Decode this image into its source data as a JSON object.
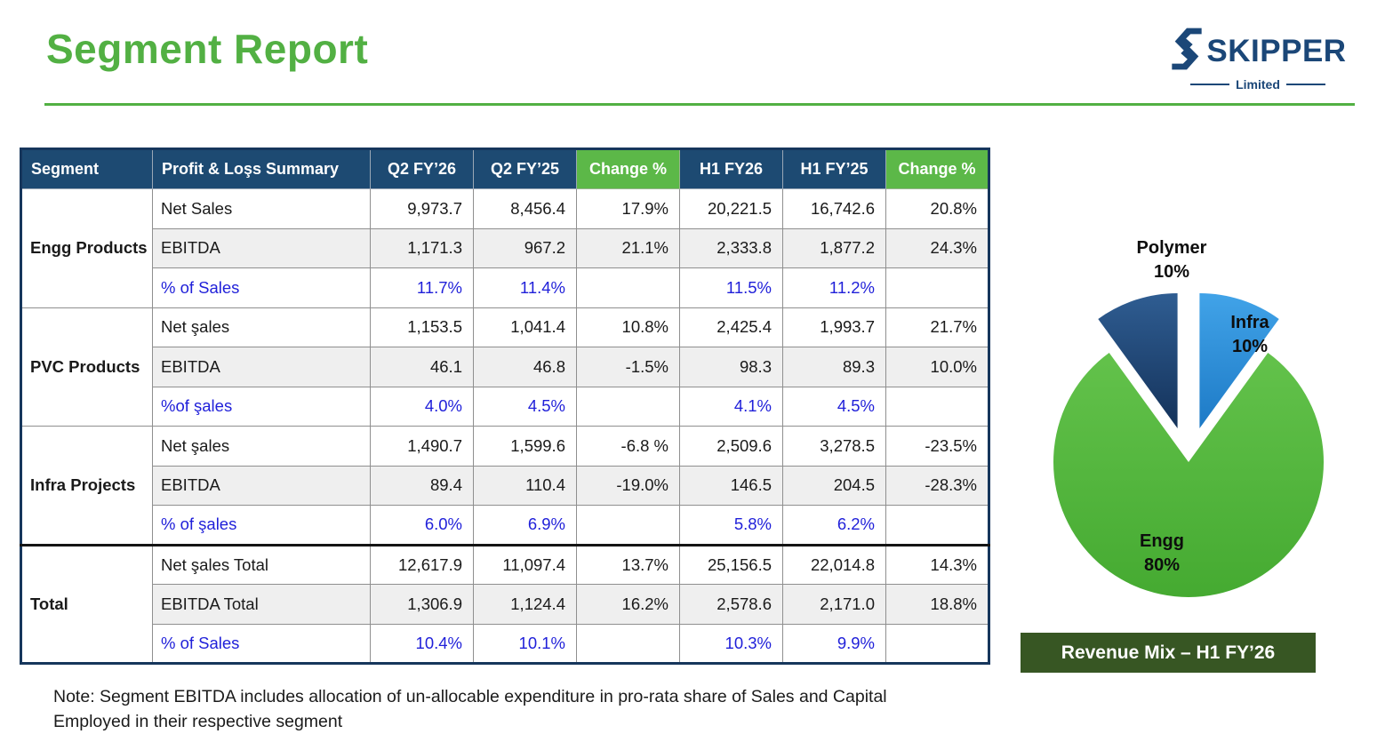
{
  "header": {
    "title": "Segment Report"
  },
  "logo": {
    "word": "SKIPPER",
    "subtitle": "Limited"
  },
  "table": {
    "columns": [
      "Segment",
      "Profit & Loşs Summary",
      "Q2 FY’26",
      "Q2 FY’25",
      "Change %",
      "H1 FY26",
      "H1 FY’25",
      "Change %"
    ],
    "sections": [
      {
        "segment": "Engg Products",
        "rows": [
          {
            "label": "Net Sales",
            "shaded": false,
            "percent": false,
            "values": [
              "9,973.7",
              "8,456.4",
              "17.9%",
              "20,221.5",
              "16,742.6",
              "20.8%"
            ]
          },
          {
            "label": "EBITDA",
            "shaded": true,
            "percent": false,
            "values": [
              "1,171.3",
              "967.2",
              "21.1%",
              "2,333.8",
              "1,877.2",
              "24.3%"
            ]
          },
          {
            "label": "% of Sales",
            "shaded": false,
            "percent": true,
            "values": [
              "11.7%",
              "11.4%",
              "",
              "11.5%",
              "11.2%",
              ""
            ]
          }
        ]
      },
      {
        "segment": "PVC Products",
        "rows": [
          {
            "label": "Net şales",
            "shaded": false,
            "percent": false,
            "values": [
              "1,153.5",
              "1,041.4",
              "10.8%",
              "2,425.4",
              "1,993.7",
              "21.7%"
            ]
          },
          {
            "label": "EBITDA",
            "shaded": true,
            "percent": false,
            "values": [
              "46.1",
              "46.8",
              "-1.5%",
              "98.3",
              "89.3",
              "10.0%"
            ]
          },
          {
            "label": "%of şales",
            "shaded": false,
            "percent": true,
            "values": [
              "4.0%",
              "4.5%",
              "",
              "4.1%",
              "4.5%",
              ""
            ]
          }
        ]
      },
      {
        "segment": "Infra Projects",
        "rows": [
          {
            "label": "Net şales",
            "shaded": false,
            "percent": false,
            "values": [
              "1,490.7",
              "1,599.6",
              "-6.8 %",
              "2,509.6",
              "3,278.5",
              "-23.5%"
            ]
          },
          {
            "label": "EBITDA",
            "shaded": true,
            "percent": false,
            "values": [
              "89.4",
              "110.4",
              "-19.0%",
              "146.5",
              "204.5",
              "-28.3%"
            ]
          },
          {
            "label": "% of şales",
            "shaded": false,
            "percent": true,
            "values": [
              "6.0%",
              "6.9%",
              "",
              "5.8%",
              "6.2%",
              ""
            ]
          }
        ]
      },
      {
        "segment": "Total",
        "rows": [
          {
            "label": "Net şales Total",
            "shaded": false,
            "percent": false,
            "values": [
              "12,617.9",
              "11,097.4",
              "13.7%",
              "25,156.5",
              "22,014.8",
              "14.3%"
            ]
          },
          {
            "label": "EBITDA Total",
            "shaded": true,
            "percent": false,
            "values": [
              "1,306.9",
              "1,124.4",
              "16.2%",
              "2,578.6",
              "2,171.0",
              "18.8%"
            ]
          },
          {
            "label": "% of Sales",
            "shaded": false,
            "percent": true,
            "values": [
              "10.4%",
              "10.1%",
              "",
              "10.3%",
              "9.9%",
              ""
            ]
          }
        ]
      }
    ]
  },
  "chart_data": {
    "type": "pie",
    "title": "Revenue Mix – H1 FY’26",
    "slices": [
      {
        "name": "Engg",
        "value": 80,
        "pct": "80%",
        "color": "#4fb23a"
      },
      {
        "name": "Polymer",
        "value": 10,
        "pct": "10%",
        "color": "#1c3f6e"
      },
      {
        "name": "Infra",
        "value": 10,
        "pct": "10%",
        "color": "#2e93df"
      }
    ],
    "exploded": [
      "Polymer",
      "Infra"
    ],
    "legend": "none",
    "labels_on_chart": true
  },
  "banner": {
    "text": "Revenue Mix – H1 FY’26"
  },
  "note": {
    "text": "Note: Segment EBITDA includes allocation of un-allocable expenditure in pro-rata share of Sales and Capital Employed  in their respective segment"
  },
  "colors": {
    "title_green": "#52b043",
    "header_navy": "#1d4a72",
    "header_green": "#5cb848",
    "banner_green": "#375623",
    "percent_blue": "#1f1fd9",
    "shade_gray": "#efefef",
    "logo_navy": "#1b4778"
  }
}
